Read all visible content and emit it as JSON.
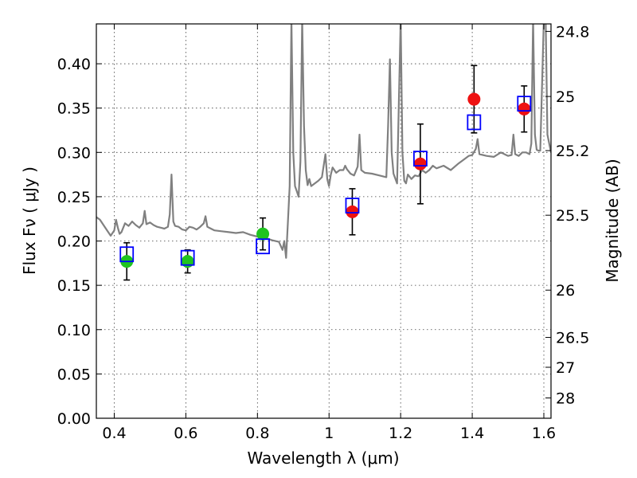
{
  "chart_data": {
    "type": "scatter",
    "xlabel": "Wavelength  λ (μm)",
    "ylabel": "Flux  Fν  ( μJy )",
    "y2label": "Magnitude (AB)",
    "xlim": [
      0.35,
      1.62
    ],
    "ylim": [
      0.0,
      0.445
    ],
    "xticks": [
      0.4,
      0.6,
      0.8,
      1.0,
      1.2,
      1.4,
      1.6
    ],
    "xtick_labels": [
      "0.4",
      "0.6",
      "0.8",
      "1",
      "1.2",
      "1.4",
      "1.6"
    ],
    "yticks": [
      0.0,
      0.05,
      0.1,
      0.15,
      0.2,
      0.25,
      0.3,
      0.35,
      0.4
    ],
    "ytick_labels": [
      "0.00",
      "0.05",
      "0.10",
      "0.15",
      "0.20",
      "0.25",
      "0.30",
      "0.35",
      "0.40"
    ],
    "mag_ticks": [
      24.8,
      25,
      25.2,
      25.5,
      26,
      26.5,
      27,
      28
    ],
    "mag_tick_labels": [
      "24.8",
      "25",
      "25.2",
      "25.5",
      "26",
      "26.5",
      "27",
      "28"
    ],
    "grid": true,
    "colors": {
      "spectrum": "#808080",
      "green_points": "#1fc41f",
      "red_points": "#ee1111",
      "model_boxes": "#0000ff",
      "error_bars": "#000000"
    },
    "series": [
      {
        "name": "model spectrum",
        "kind": "line",
        "x": [
          0.35,
          0.36,
          0.37,
          0.38,
          0.39,
          0.4,
          0.405,
          0.41,
          0.415,
          0.42,
          0.43,
          0.44,
          0.45,
          0.46,
          0.47,
          0.48,
          0.485,
          0.49,
          0.5,
          0.51,
          0.52,
          0.53,
          0.54,
          0.55,
          0.555,
          0.56,
          0.565,
          0.57,
          0.58,
          0.59,
          0.6,
          0.61,
          0.62,
          0.63,
          0.64,
          0.65,
          0.655,
          0.66,
          0.67,
          0.68,
          0.7,
          0.72,
          0.74,
          0.76,
          0.78,
          0.8,
          0.82,
          0.84,
          0.86,
          0.87,
          0.875,
          0.88,
          0.885,
          0.89,
          0.895,
          0.9,
          0.905,
          0.91,
          0.915,
          0.92,
          0.925,
          0.93,
          0.935,
          0.94,
          0.945,
          0.95,
          0.96,
          0.97,
          0.98,
          0.99,
          0.995,
          1.0,
          1.005,
          1.01,
          1.02,
          1.03,
          1.04,
          1.045,
          1.05,
          1.06,
          1.07,
          1.08,
          1.085,
          1.09,
          1.1,
          1.12,
          1.14,
          1.16,
          1.165,
          1.17,
          1.175,
          1.18,
          1.19,
          1.2,
          1.205,
          1.21,
          1.215,
          1.22,
          1.23,
          1.24,
          1.25,
          1.26,
          1.27,
          1.28,
          1.29,
          1.3,
          1.32,
          1.34,
          1.36,
          1.38,
          1.39,
          1.4,
          1.41,
          1.415,
          1.42,
          1.44,
          1.46,
          1.48,
          1.5,
          1.51,
          1.515,
          1.52,
          1.53,
          1.54,
          1.55,
          1.56,
          1.565,
          1.57,
          1.575,
          1.58,
          1.585,
          1.59,
          1.6,
          1.605,
          1.61,
          1.62
        ],
        "y": [
          0.227,
          0.224,
          0.218,
          0.212,
          0.206,
          0.212,
          0.224,
          0.215,
          0.208,
          0.21,
          0.22,
          0.217,
          0.222,
          0.218,
          0.215,
          0.22,
          0.234,
          0.219,
          0.221,
          0.218,
          0.216,
          0.215,
          0.214,
          0.216,
          0.23,
          0.275,
          0.222,
          0.217,
          0.216,
          0.213,
          0.212,
          0.216,
          0.215,
          0.213,
          0.216,
          0.22,
          0.228,
          0.216,
          0.214,
          0.212,
          0.211,
          0.21,
          0.209,
          0.21,
          0.207,
          0.205,
          0.204,
          0.201,
          0.199,
          0.19,
          0.2,
          0.181,
          0.22,
          0.262,
          0.45,
          0.3,
          0.262,
          0.256,
          0.25,
          0.29,
          0.45,
          0.33,
          0.28,
          0.263,
          0.27,
          0.262,
          0.265,
          0.268,
          0.272,
          0.298,
          0.27,
          0.262,
          0.275,
          0.283,
          0.277,
          0.28,
          0.28,
          0.285,
          0.281,
          0.276,
          0.274,
          0.284,
          0.32,
          0.28,
          0.277,
          0.276,
          0.274,
          0.272,
          0.33,
          0.405,
          0.3,
          0.276,
          0.265,
          0.45,
          0.3,
          0.268,
          0.265,
          0.275,
          0.27,
          0.274,
          0.273,
          0.28,
          0.277,
          0.28,
          0.285,
          0.282,
          0.285,
          0.28,
          0.287,
          0.293,
          0.296,
          0.297,
          0.304,
          0.315,
          0.298,
          0.296,
          0.295,
          0.3,
          0.296,
          0.297,
          0.32,
          0.298,
          0.296,
          0.3,
          0.3,
          0.298,
          0.31,
          0.45,
          0.32,
          0.303,
          0.302,
          0.302,
          0.45,
          0.45,
          0.32,
          0.3
        ]
      },
      {
        "name": "observed (green)",
        "kind": "points",
        "x": [
          0.435,
          0.605,
          0.815
        ],
        "y": [
          0.177,
          0.177,
          0.208
        ],
        "err": [
          0.021,
          0.013,
          0.018
        ]
      },
      {
        "name": "observed (red)",
        "kind": "points",
        "x": [
          1.065,
          1.255,
          1.405,
          1.545
        ],
        "y": [
          0.233,
          0.287,
          0.36,
          0.349
        ],
        "err": [
          0.026,
          0.045,
          0.038,
          0.026
        ]
      },
      {
        "name": "model photometry",
        "kind": "boxes",
        "x": [
          0.435,
          0.605,
          0.815,
          1.065,
          1.255,
          1.405,
          1.545
        ],
        "y": [
          0.185,
          0.181,
          0.194,
          0.24,
          0.293,
          0.334,
          0.355
        ]
      }
    ]
  }
}
